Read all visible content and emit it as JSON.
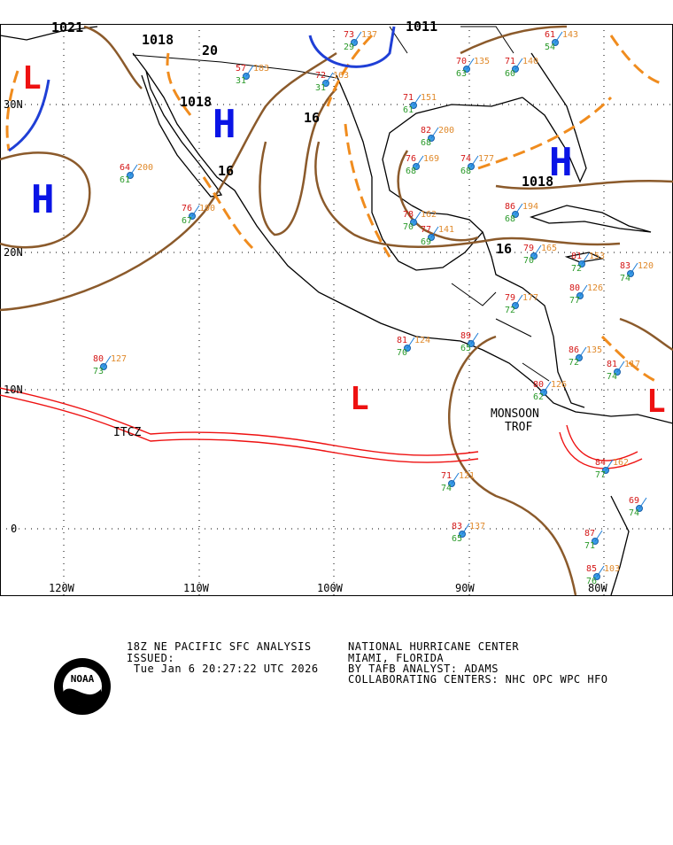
{
  "map": {
    "lat_labels": [
      "30N",
      "20N",
      "10N",
      "0"
    ],
    "lon_labels": [
      "120W",
      "110W",
      "100W",
      "90W",
      "80W"
    ],
    "pressure_labels": [
      "1021",
      "1018",
      "20",
      "1018",
      "16",
      "16",
      "1011",
      "1018",
      "16"
    ],
    "systems": [
      "L",
      "H",
      "H",
      "L",
      "H",
      "L"
    ],
    "features": [
      "ITCZ",
      "MONSOON",
      "TROF"
    ],
    "stations": [
      {
        "t": "64",
        "d": "61",
        "p": "200"
      },
      {
        "t": "76",
        "d": "67",
        "p": "190"
      },
      {
        "t": "80",
        "d": "73",
        "p": "127"
      },
      {
        "t": "57",
        "d": "31",
        "p": "183"
      },
      {
        "t": "72",
        "d": "31",
        "p": "163"
      },
      {
        "t": "73",
        "d": "29",
        "p": "137"
      },
      {
        "t": "70",
        "d": "63",
        "p": "135"
      },
      {
        "t": "71",
        "d": "60",
        "p": "140"
      },
      {
        "t": "61",
        "d": "54",
        "p": "143"
      },
      {
        "t": "71",
        "d": "61",
        "p": "151"
      },
      {
        "t": "82",
        "d": "68",
        "p": "200"
      },
      {
        "t": "76",
        "d": "68",
        "p": "169"
      },
      {
        "t": "74",
        "d": "68",
        "p": "177"
      },
      {
        "t": "78",
        "d": "70",
        "p": "162"
      },
      {
        "t": "77",
        "d": "69",
        "p": "141"
      },
      {
        "t": "86",
        "d": "68",
        "p": "194"
      },
      {
        "t": "79",
        "d": "70",
        "p": "165"
      },
      {
        "t": "81",
        "d": "72",
        "p": "153"
      },
      {
        "t": "83",
        "d": "74",
        "p": "120"
      },
      {
        "t": "80",
        "d": "77",
        "p": "126"
      },
      {
        "t": "79",
        "d": "72",
        "p": "177"
      },
      {
        "t": "81",
        "d": "70",
        "p": "124"
      },
      {
        "t": "89",
        "d": "65",
        "p": ""
      },
      {
        "t": "86",
        "d": "72",
        "p": "135"
      },
      {
        "t": "81",
        "d": "74",
        "p": "117"
      },
      {
        "t": "80",
        "d": "62",
        "p": "126"
      },
      {
        "t": "71",
        "d": "74",
        "p": "121"
      },
      {
        "t": "83",
        "d": "65",
        "p": "137"
      },
      {
        "t": "87",
        "d": "71",
        "p": ""
      },
      {
        "t": "85",
        "d": "76",
        "p": "103"
      },
      {
        "t": "84",
        "d": "77",
        "p": "162"
      },
      {
        "t": "69",
        "d": "74",
        "p": ""
      }
    ]
  },
  "footer": {
    "product": "18Z NE PACIFIC SFC ANALYSIS",
    "issued": "ISSUED:",
    "time": "Tue Jan 6 20:27:22 UTC 2026",
    "center": "NATIONAL HURRICANE CENTER",
    "city": "MIAMI, FLORIDA",
    "analyst": "BY TAFB ANALYST: ADAMS",
    "collab": "COLLABORATING CENTERS: NHC OPC WPC HFO",
    "logo": "NOAA"
  }
}
